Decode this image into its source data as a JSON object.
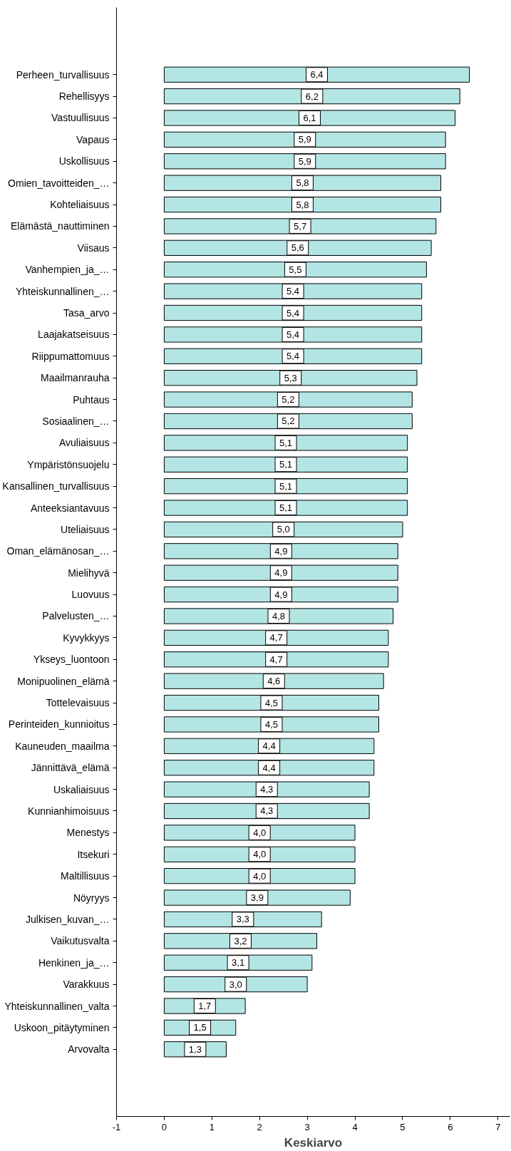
{
  "chart_data": {
    "type": "bar",
    "orientation": "horizontal",
    "xlabel": "Keskiarvo",
    "categories": [
      "Perheen_turvallisuus",
      "Rehellisyys",
      "Vastuullisuus",
      "Vapaus",
      "Uskollisuus",
      "Omien_tavoitteiden_…",
      "Kohteliaisuus",
      "Elämästä_nauttiminen",
      "Viisaus",
      "Vanhempien_ja_…",
      "Yhteiskunnallinen_…",
      "Tasa_arvo",
      "Laajakatseisuus",
      "Riippumattomuus",
      "Maailmanrauha",
      "Puhtaus",
      "Sosiaalinen_…",
      "Avuliaisuus",
      "Ympäristönsuojelu",
      "Kansallinen_turvallisuus",
      "Anteeksiantavuus",
      "Uteliaisuus",
      "Oman_elämänosan_…",
      "Mielihyvä",
      "Luovuus",
      "Palvelusten_…",
      "Kyvykkyys",
      "Ykseys_luontoon",
      "Monipuolinen_elämä",
      "Tottelevaisuus",
      "Perinteiden_kunnioitus",
      "Kauneuden_maailma",
      "Jännittävä_elämä",
      "Uskaliaisuus",
      "Kunnianhimoisuus",
      "Menestys",
      "Itsekuri",
      "Maltillisuus",
      "Nöyryys",
      "Julkisen_kuvan_…",
      "Vaikutusvalta",
      "Henkinen_ja_…",
      "Varakkuus",
      "Yhteiskunnallinen_valta",
      "Uskoon_pitäytyminen",
      "Arvovalta"
    ],
    "values": [
      6.4,
      6.2,
      6.1,
      5.9,
      5.9,
      5.8,
      5.8,
      5.7,
      5.6,
      5.5,
      5.4,
      5.4,
      5.4,
      5.4,
      5.3,
      5.2,
      5.2,
      5.1,
      5.1,
      5.1,
      5.1,
      5.0,
      4.9,
      4.9,
      4.9,
      4.8,
      4.7,
      4.7,
      4.6,
      4.5,
      4.5,
      4.4,
      4.4,
      4.3,
      4.3,
      4.0,
      4.0,
      4.0,
      3.9,
      3.3,
      3.2,
      3.1,
      3.0,
      1.7,
      1.5,
      1.3
    ],
    "value_labels": [
      "6,4",
      "6,2",
      "6,1",
      "5,9",
      "5,9",
      "5,8",
      "5,8",
      "5,7",
      "5,6",
      "5,5",
      "5,4",
      "5,4",
      "5,4",
      "5,4",
      "5,3",
      "5,2",
      "5,2",
      "5,1",
      "5,1",
      "5,1",
      "5,1",
      "5,0",
      "4,9",
      "4,9",
      "4,9",
      "4,8",
      "4,7",
      "4,7",
      "4,6",
      "4,5",
      "4,5",
      "4,4",
      "4,4",
      "4,3",
      "4,3",
      "4,0",
      "4,0",
      "4,0",
      "3,9",
      "3,3",
      "3,2",
      "3,1",
      "3,0",
      "1,7",
      "1,5",
      "1,3"
    ],
    "color": "#b3e5e5",
    "xlim": [
      -1,
      7.25
    ],
    "xticks": [
      -1,
      0,
      1,
      2,
      3,
      4,
      5,
      6,
      7
    ],
    "grid": false
  }
}
